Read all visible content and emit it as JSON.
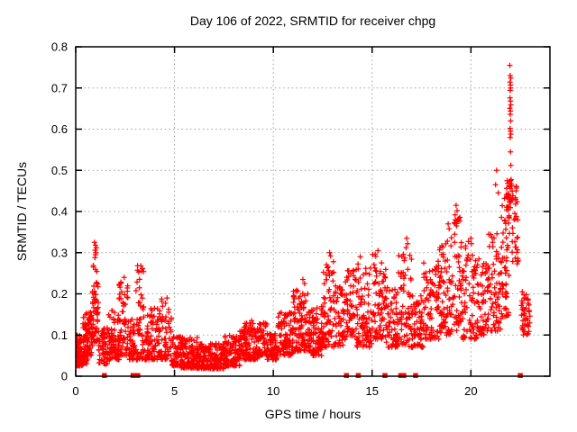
{
  "chart_data": {
    "type": "scatter",
    "title": "Day 106 of 2022, SRMTID for receiver chpg",
    "xlabel": "GPS time / hours",
    "ylabel": "SRMTID / TECUs",
    "xlim": [
      0,
      24
    ],
    "ylim": [
      0,
      0.8
    ],
    "xtick_values": [
      0,
      5,
      10,
      15,
      20
    ],
    "xtick_labels": [
      "0",
      "5",
      "10",
      "15",
      "20"
    ],
    "ytick_values": [
      0,
      0.1,
      0.2,
      0.3,
      0.4,
      0.5,
      0.6,
      0.7,
      0.8
    ],
    "ytick_labels": [
      "0",
      "0.1",
      "0.2",
      "0.3",
      "0.4",
      "0.5",
      "0.6",
      "0.7",
      "0.8"
    ],
    "grid": true,
    "legend": "none",
    "marker": "plus",
    "marker_color": "#ff0000",
    "grid_color": "#a0a0a0",
    "axis_color": "#000000",
    "background": "#ffffff",
    "density_bands": [
      [
        0.0,
        0.35,
        90,
        0.025,
        0.1,
        1.6
      ],
      [
        0.35,
        0.62,
        60,
        0.03,
        0.155,
        1.8
      ],
      [
        0.6,
        0.88,
        45,
        0.05,
        0.16,
        1.4
      ],
      [
        0.85,
        1.15,
        50,
        0.08,
        0.27,
        1.2
      ],
      [
        1.15,
        1.6,
        55,
        0.03,
        0.12,
        1.5
      ],
      [
        1.6,
        2.2,
        80,
        0.04,
        0.16,
        1.8
      ],
      [
        2.2,
        2.65,
        60,
        0.05,
        0.235,
        1.7
      ],
      [
        2.65,
        3.0,
        40,
        0.04,
        0.14,
        1.5
      ],
      [
        3.0,
        3.45,
        55,
        0.04,
        0.27,
        1.8
      ],
      [
        3.45,
        4.3,
        95,
        0.04,
        0.165,
        1.7
      ],
      [
        4.3,
        4.85,
        55,
        0.04,
        0.19,
        1.6
      ],
      [
        4.85,
        5.3,
        55,
        0.025,
        0.1,
        1.6
      ],
      [
        5.3,
        6.2,
        120,
        0.02,
        0.095,
        1.7
      ],
      [
        6.2,
        7.5,
        170,
        0.018,
        0.08,
        1.6
      ],
      [
        7.5,
        8.3,
        105,
        0.025,
        0.1,
        1.6
      ],
      [
        8.3,
        9.2,
        120,
        0.04,
        0.13,
        1.4
      ],
      [
        9.2,
        9.7,
        60,
        0.05,
        0.13,
        1.5
      ],
      [
        9.7,
        10.2,
        60,
        0.04,
        0.105,
        1.5
      ],
      [
        10.2,
        11.0,
        100,
        0.05,
        0.16,
        1.5
      ],
      [
        11.0,
        11.8,
        100,
        0.06,
        0.215,
        1.6
      ],
      [
        11.8,
        12.5,
        90,
        0.05,
        0.17,
        1.5
      ],
      [
        12.5,
        13.1,
        70,
        0.07,
        0.295,
        1.8
      ],
      [
        13.1,
        13.65,
        55,
        0.07,
        0.22,
        1.4
      ],
      [
        13.65,
        14.2,
        55,
        0.09,
        0.26,
        1.4
      ],
      [
        14.2,
        15.0,
        85,
        0.07,
        0.275,
        1.5
      ],
      [
        15.0,
        15.7,
        75,
        0.09,
        0.3,
        1.5
      ],
      [
        15.7,
        16.3,
        65,
        0.07,
        0.22,
        1.4
      ],
      [
        16.3,
        17.0,
        70,
        0.07,
        0.3,
        1.5
      ],
      [
        17.0,
        17.6,
        60,
        0.07,
        0.2,
        1.4
      ],
      [
        17.6,
        18.4,
        85,
        0.09,
        0.28,
        1.5
      ],
      [
        18.4,
        19.0,
        70,
        0.1,
        0.33,
        1.5
      ],
      [
        19.0,
        19.5,
        55,
        0.11,
        0.39,
        1.5
      ],
      [
        19.5,
        20.3,
        80,
        0.09,
        0.33,
        1.6
      ],
      [
        20.3,
        20.9,
        60,
        0.1,
        0.29,
        1.4
      ],
      [
        20.9,
        21.5,
        60,
        0.11,
        0.35,
        1.5
      ],
      [
        21.5,
        21.95,
        55,
        0.14,
        0.44,
        1.2
      ],
      [
        21.8,
        22.05,
        30,
        0.38,
        0.48,
        1.0
      ],
      [
        22.05,
        22.4,
        35,
        0.27,
        0.47,
        1.3
      ],
      [
        22.55,
        23.0,
        45,
        0.1,
        0.2,
        1.3
      ]
    ],
    "outlier_points": [
      [
        0.02,
        0.1
      ],
      [
        0.05,
        0.095
      ],
      [
        0.95,
        0.325
      ],
      [
        1.0,
        0.318
      ],
      [
        1.04,
        0.312
      ],
      [
        0.98,
        0.306
      ],
      [
        1.02,
        0.3
      ],
      [
        1.0,
        0.295
      ],
      [
        0.97,
        0.288
      ],
      [
        2.45,
        0.24
      ],
      [
        3.3,
        0.268
      ],
      [
        8.9,
        0.135
      ],
      [
        11.5,
        0.235
      ],
      [
        11.58,
        0.225
      ],
      [
        12.85,
        0.3
      ],
      [
        12.9,
        0.292
      ],
      [
        14.4,
        0.29
      ],
      [
        15.3,
        0.305
      ],
      [
        16.75,
        0.335
      ],
      [
        16.8,
        0.322
      ],
      [
        16.72,
        0.312
      ],
      [
        18.85,
        0.37
      ],
      [
        18.9,
        0.358
      ],
      [
        19.25,
        0.415
      ],
      [
        19.3,
        0.402
      ],
      [
        19.2,
        0.392
      ],
      [
        20.0,
        0.335
      ],
      [
        20.9,
        0.345
      ],
      [
        21.1,
        0.325
      ],
      [
        21.3,
        0.5
      ],
      [
        21.25,
        0.465
      ],
      [
        21.38,
        0.445
      ],
      [
        21.8,
        0.2
      ],
      [
        22.6,
        0.205
      ],
      [
        21.97,
        0.755
      ],
      [
        21.99,
        0.73
      ],
      [
        22.02,
        0.724
      ],
      [
        21.98,
        0.714
      ],
      [
        22.0,
        0.707
      ],
      [
        22.01,
        0.7
      ],
      [
        21.99,
        0.694
      ],
      [
        21.98,
        0.676
      ],
      [
        22.0,
        0.668
      ],
      [
        22.02,
        0.659
      ],
      [
        21.97,
        0.651
      ],
      [
        22.0,
        0.644
      ],
      [
        21.99,
        0.636
      ],
      [
        22.01,
        0.62
      ],
      [
        21.98,
        0.602
      ],
      [
        22.0,
        0.595
      ],
      [
        22.02,
        0.588
      ],
      [
        21.99,
        0.58
      ],
      [
        22.0,
        0.545
      ],
      [
        22.02,
        0.512
      ]
    ],
    "zero_marker_hours": [
      1.45,
      2.9,
      3.02,
      3.14,
      13.7,
      14.3,
      15.65,
      16.45,
      16.6,
      17.2,
      22.5
    ]
  }
}
